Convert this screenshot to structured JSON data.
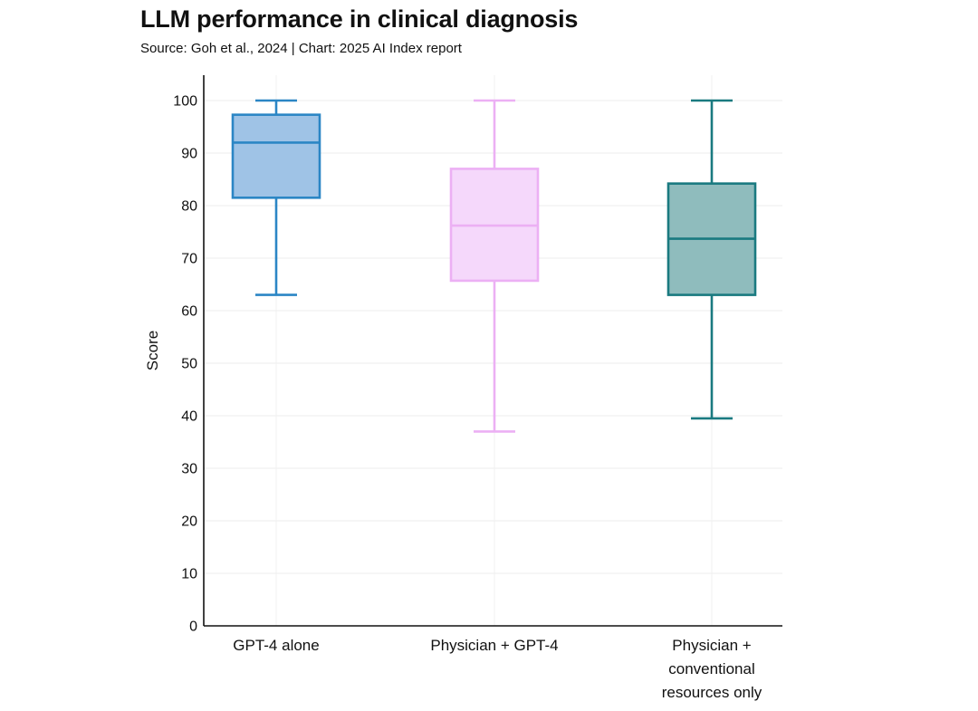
{
  "chart_data": {
    "type": "box",
    "title": "LLM performance in clinical diagnosis",
    "subtitle": "Source: Goh et al., 2024 | Chart: 2025 AI Index report",
    "xlabel": "",
    "ylabel": "Score",
    "ylim": [
      0,
      100
    ],
    "yticks": [
      0,
      10,
      20,
      30,
      40,
      50,
      60,
      70,
      80,
      90,
      100
    ],
    "grid": true,
    "categories": [
      [
        "GPT-4 alone"
      ],
      [
        "Physician + GPT-4"
      ],
      [
        "Physician +",
        "conventional",
        "resources only"
      ]
    ],
    "series": [
      {
        "name": "GPT-4 alone",
        "min": 63,
        "q1": 81.5,
        "median": 92,
        "q3": 97.3,
        "max": 100,
        "stroke": "#2b86c5",
        "fill": "#9fc3e6"
      },
      {
        "name": "Physician + GPT-4",
        "min": 37,
        "q1": 65.7,
        "median": 76.2,
        "q3": 87,
        "max": 100,
        "stroke": "#ecb0f4",
        "fill": "#f5d8fb"
      },
      {
        "name": "Physician + conventional resources only",
        "min": 39.5,
        "q1": 63,
        "median": 73.7,
        "q3": 84.2,
        "max": 100,
        "stroke": "#1a7a80",
        "fill": "#8fbcbd"
      }
    ]
  }
}
